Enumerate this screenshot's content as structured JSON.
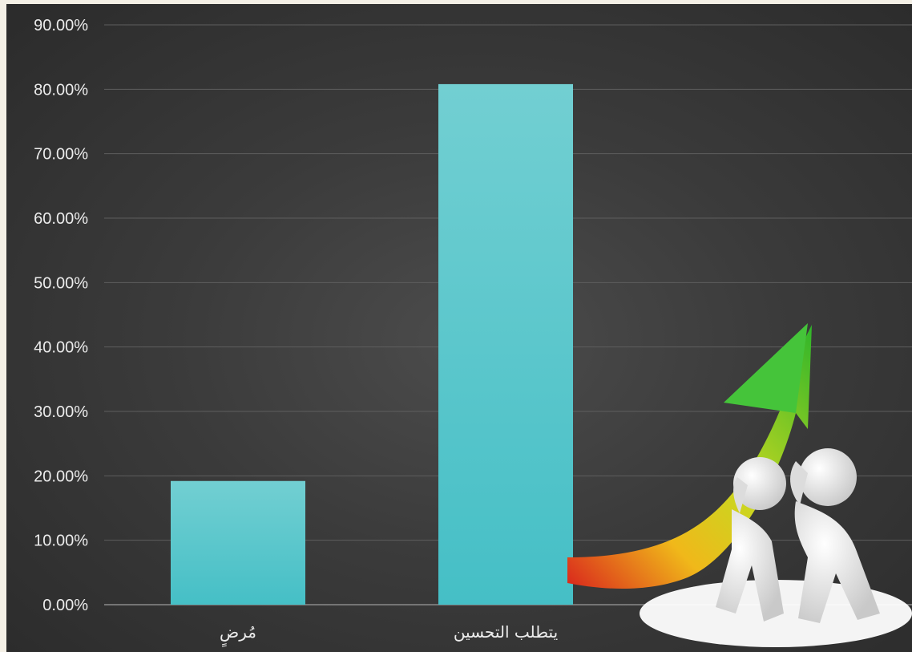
{
  "chart_data": {
    "type": "bar",
    "categories": [
      "مُرضٍ",
      "يتطلب التحسين"
    ],
    "values": [
      0.192,
      0.808
    ],
    "ylim": [
      0,
      0.9
    ],
    "yticks": [
      "0.00%",
      "10.00%",
      "20.00%",
      "30.00%",
      "40.00%",
      "50.00%",
      "60.00%",
      "70.00%",
      "80.00%",
      "90.00%"
    ],
    "grid": true,
    "legend": "none",
    "colors": {
      "bar_top": "#72cfd2",
      "bar_bottom": "#45bfc6",
      "grid": "#5e5e5e",
      "text": "#ececec",
      "background": "#3a3a3a"
    }
  },
  "illustration": {
    "icon": "growth-arrow-people-pushing-icon"
  }
}
